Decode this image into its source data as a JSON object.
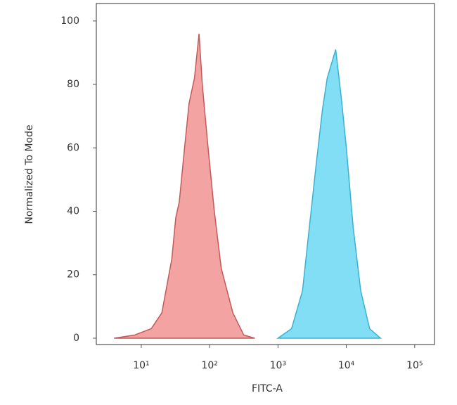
{
  "chart_data": {
    "type": "area",
    "x_label": "FITC-A",
    "y_label": "Normalized To Mode",
    "xscale": "log",
    "xlim": [
      2.2,
      195000
    ],
    "ylim": [
      -2,
      105.5
    ],
    "xticks": [
      {
        "value": 10,
        "label": "10¹"
      },
      {
        "value": 100,
        "label": "10²"
      },
      {
        "value": 1000,
        "label": "10³"
      },
      {
        "value": 10000,
        "label": "10⁴"
      },
      {
        "value": 100000,
        "label": "10⁵"
      }
    ],
    "yticks": [
      0,
      20,
      40,
      60,
      80,
      100
    ],
    "series": [
      {
        "color": "#f4a3a3",
        "edge": "#c25a5a",
        "x": [
          4,
          8,
          14,
          20,
          28,
          32,
          36,
          43,
          50,
          60,
          70,
          78,
          93,
          117,
          148,
          219,
          316,
          457
        ],
        "values": [
          0,
          1,
          3,
          8,
          25,
          38,
          43,
          60,
          74,
          82,
          96,
          80,
          62,
          40,
          22,
          8,
          1,
          0
        ]
      },
      {
        "color": "#82def5",
        "edge": "#3ab2cf",
        "x": [
          1000,
          1580,
          2290,
          2880,
          3630,
          4470,
          5250,
          7000,
          8510,
          10000,
          12600,
          16200,
          21900,
          31600
        ],
        "values": [
          0,
          3,
          15,
          35,
          55,
          72,
          82,
          91,
          75,
          60,
          35,
          15,
          3,
          0
        ]
      }
    ]
  }
}
